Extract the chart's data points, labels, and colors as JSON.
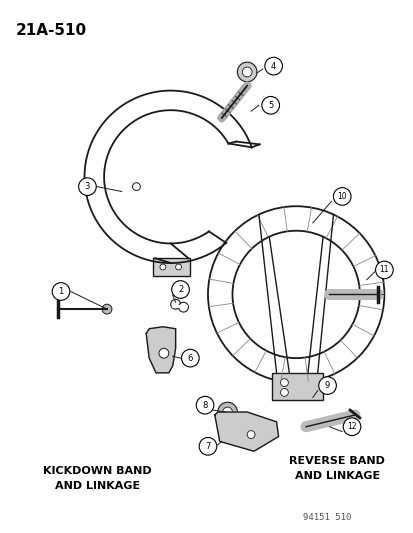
{
  "title": "21A-510",
  "background_color": "#ffffff",
  "text_color": "#000000",
  "line_color": "#1a1a1a",
  "kickdown_label": "KICKDOWN BAND\nAND LINKAGE",
  "reverse_label": "REVERSE BAND\nAND LINKAGE",
  "footer": "94151 510",
  "fig_width": 4.14,
  "fig_height": 5.33,
  "dpi": 100
}
